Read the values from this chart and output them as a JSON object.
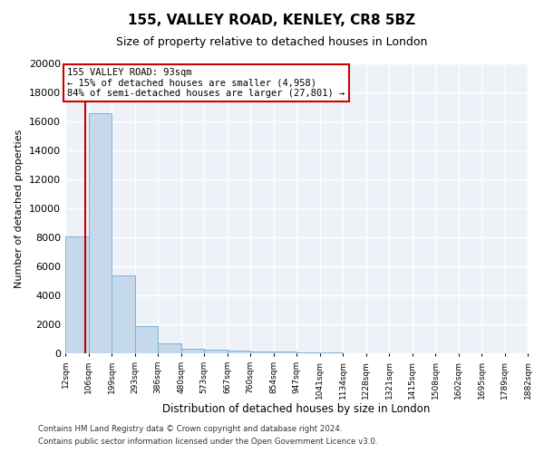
{
  "title_line1": "155, VALLEY ROAD, KENLEY, CR8 5BZ",
  "title_line2": "Size of property relative to detached houses in London",
  "xlabel": "Distribution of detached houses by size in London",
  "ylabel": "Number of detached properties",
  "bar_color": "#c6d9ec",
  "bar_edge_color": "#7bafd4",
  "bin_edges": [
    12,
    106,
    199,
    293,
    386,
    480,
    573,
    667,
    760,
    854,
    947,
    1041,
    1134,
    1228,
    1321,
    1415,
    1508,
    1602,
    1695,
    1789,
    1882
  ],
  "bin_heights": [
    8050,
    16550,
    5400,
    1850,
    700,
    320,
    220,
    200,
    150,
    100,
    60,
    40,
    30,
    20,
    15,
    10,
    8,
    5,
    4,
    3
  ],
  "property_size": 93,
  "red_line_color": "#cc0000",
  "annotation_text": "155 VALLEY ROAD: 93sqm\n← 15% of detached houses are smaller (4,958)\n84% of semi-detached houses are larger (27,801) →",
  "annotation_box_color": "#ffffff",
  "annotation_box_edge_color": "#cc0000",
  "ylim": [
    0,
    20000
  ],
  "yticks": [
    0,
    2000,
    4000,
    6000,
    8000,
    10000,
    12000,
    14000,
    16000,
    18000,
    20000
  ],
  "xtick_labels": [
    "12sqm",
    "106sqm",
    "199sqm",
    "293sqm",
    "386sqm",
    "480sqm",
    "573sqm",
    "667sqm",
    "760sqm",
    "854sqm",
    "947sqm",
    "1041sqm",
    "1134sqm",
    "1228sqm",
    "1321sqm",
    "1415sqm",
    "1508sqm",
    "1602sqm",
    "1695sqm",
    "1789sqm",
    "1882sqm"
  ],
  "footer_line1": "Contains HM Land Registry data © Crown copyright and database right 2024.",
  "footer_line2": "Contains public sector information licensed under the Open Government Licence v3.0.",
  "background_color": "#eef2f8",
  "grid_color": "#ffffff"
}
